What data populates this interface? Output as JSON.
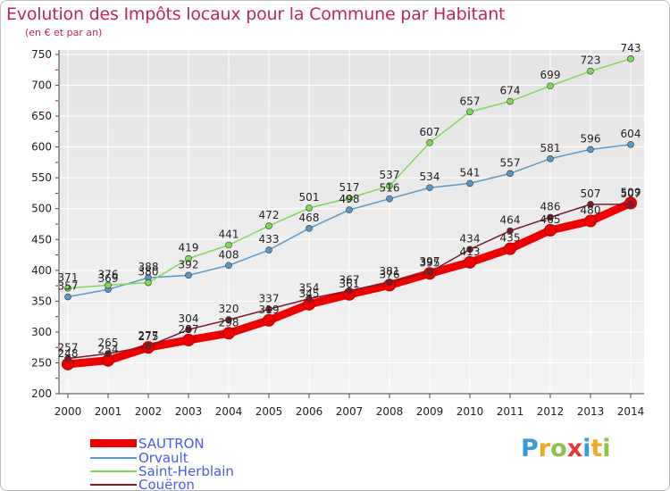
{
  "title": "Evolution des Impôts locaux pour la Commune par Habitant",
  "subtitle": "(en € et par an)",
  "logo": {
    "letters": [
      "P",
      "r",
      "o",
      "x",
      "i",
      "t",
      "i"
    ],
    "colors": [
      "#3a9ad9",
      "#f5a623",
      "#8bc34a",
      "#e53935",
      "#3a9ad9",
      "#f5a623",
      "#8bc34a"
    ]
  },
  "colors": {
    "axis": "#444444",
    "grid": "#ffffff",
    "tick": "#cc0000"
  },
  "chart_data": {
    "type": "line",
    "xlabel": "",
    "ylabel": "",
    "ylim": [
      200,
      750
    ],
    "ytick_step": 50,
    "x": [
      "2000",
      "2001",
      "2002",
      "2003",
      "2004",
      "2005",
      "2006",
      "2007",
      "2008",
      "2009",
      "2010",
      "2011",
      "2012",
      "2013",
      "2014"
    ],
    "series": [
      {
        "name": "SAUTRON",
        "color": "#ee0000",
        "values": [
          248,
          254,
          275,
          287,
          298,
          319,
          345,
          361,
          376,
          395,
          413,
          435,
          465,
          480,
          509
        ]
      },
      {
        "name": "Orvault",
        "color": "#5a98c8",
        "values": [
          357,
          369,
          388,
          392,
          408,
          433,
          468,
          498,
          516,
          534,
          541,
          557,
          581,
          596,
          604
        ]
      },
      {
        "name": "Saint-Herblain",
        "color": "#7ed957",
        "values": [
          371,
          376,
          380,
          419,
          441,
          472,
          501,
          517,
          537,
          607,
          657,
          674,
          699,
          723,
          743
        ]
      },
      {
        "name": "Couëron",
        "color": "#7a1a2a",
        "values": [
          257,
          265,
          277,
          304,
          320,
          337,
          354,
          367,
          381,
          397,
          434,
          464,
          486,
          507,
          507
        ]
      }
    ]
  }
}
